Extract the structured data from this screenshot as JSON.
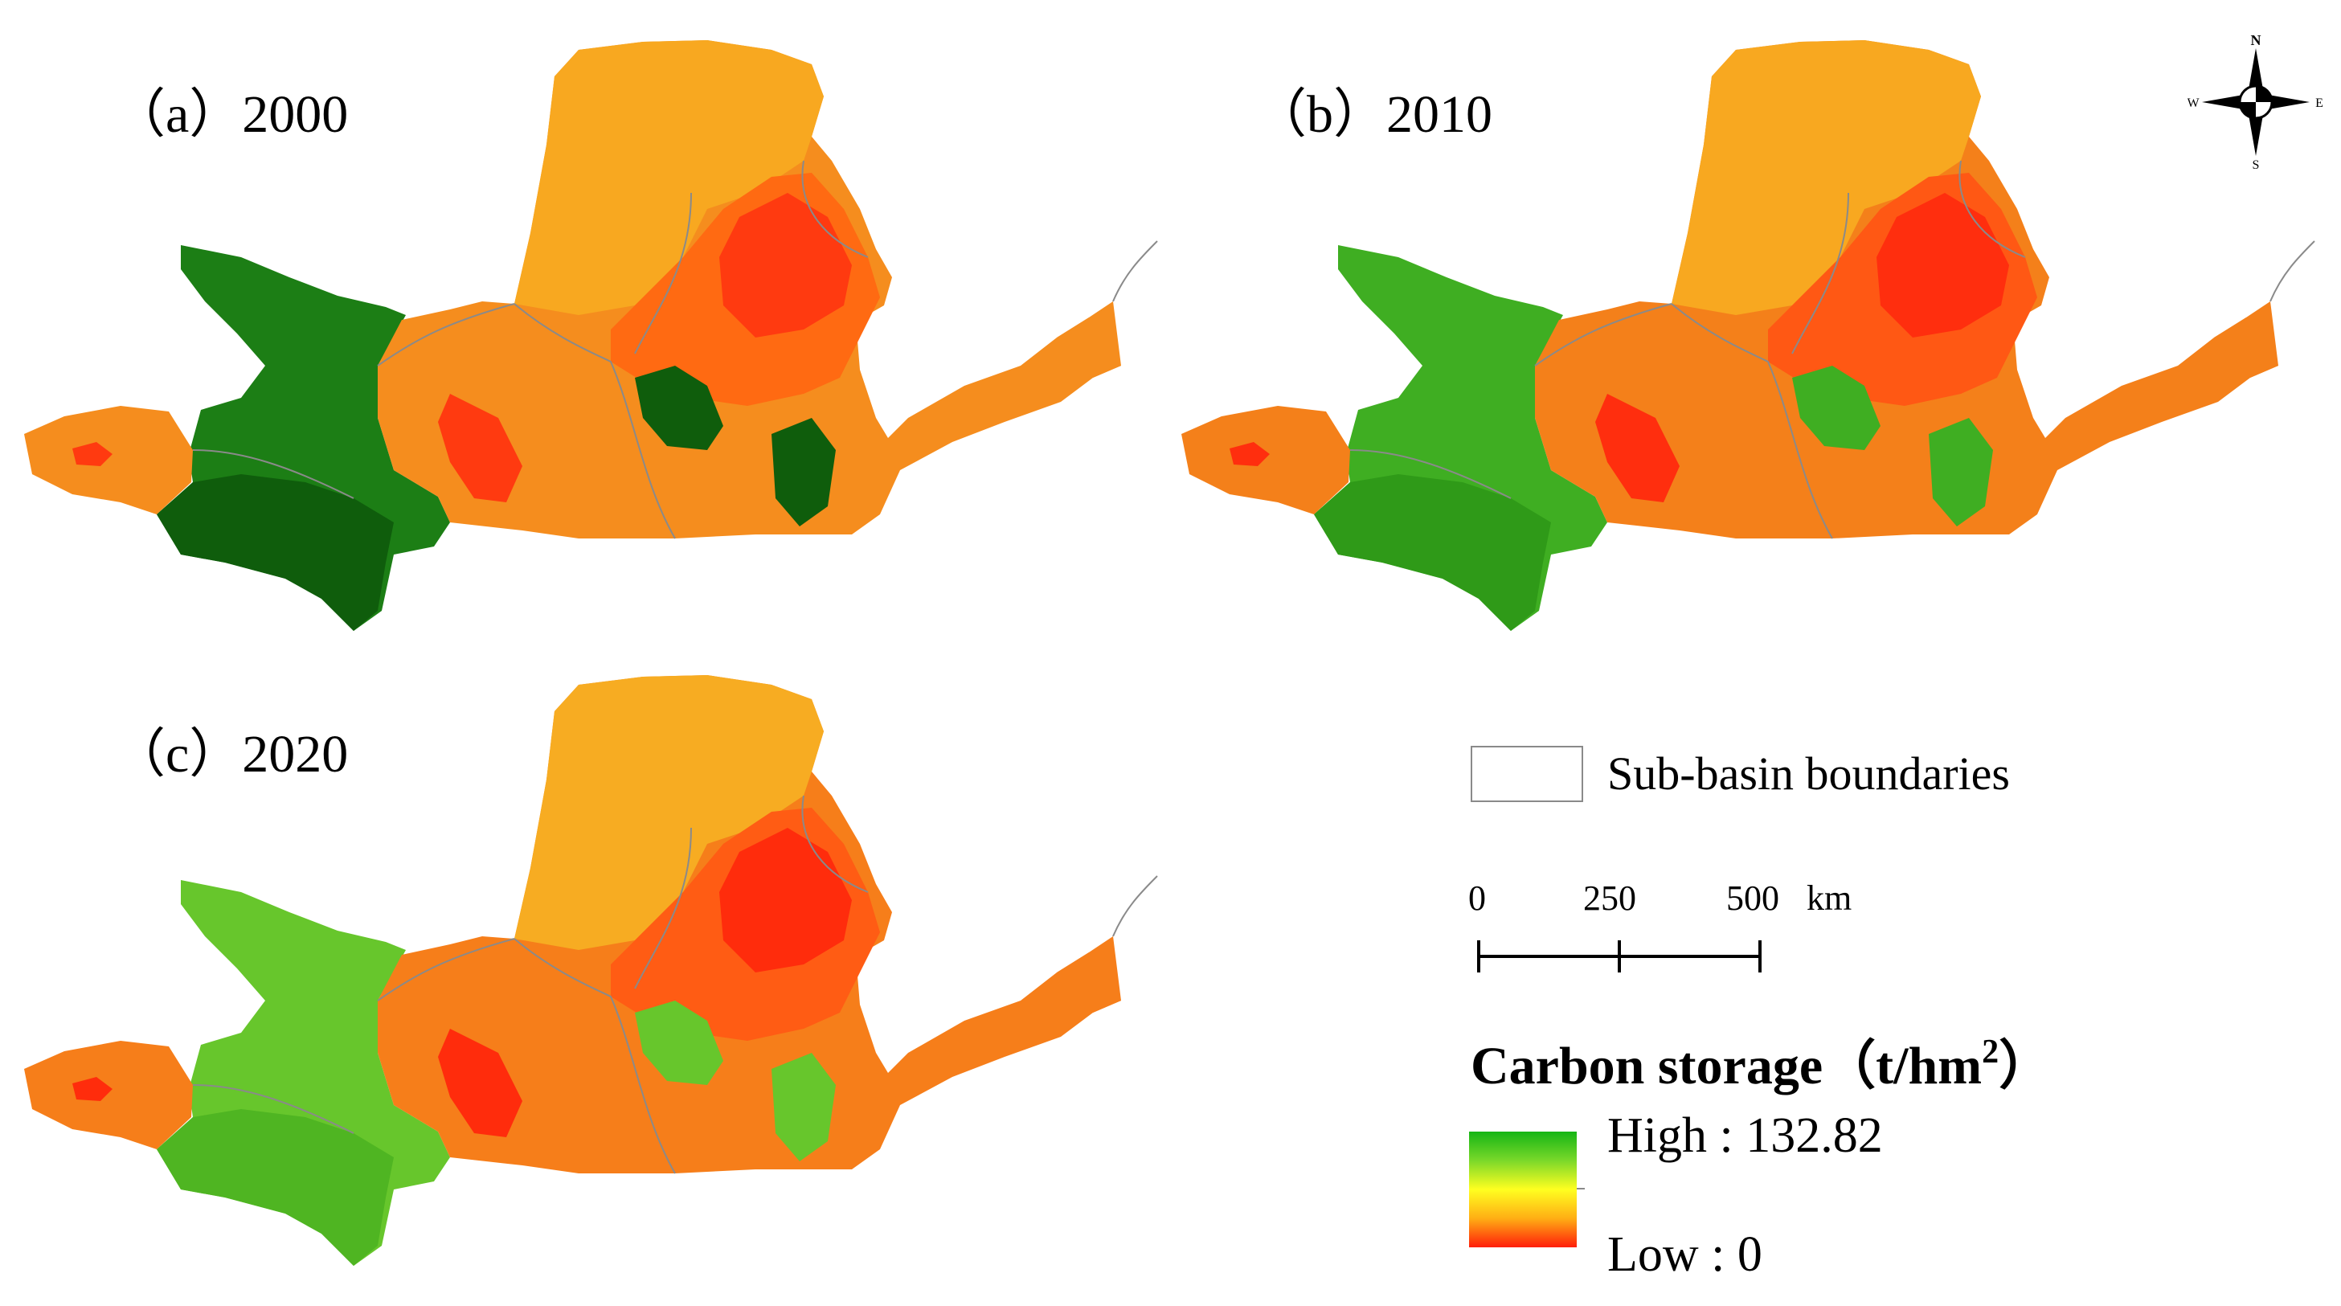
{
  "panels": [
    {
      "id": "a",
      "label": "（a）2000",
      "west_tone": "#1c7e15",
      "west_tone_dark": "#0f5d0c",
      "core_tone": "#f58d1e",
      "plateau_tone": "#ff6a12",
      "north_tone": "#f8a820",
      "hot_tone": "#ff3a10"
    },
    {
      "id": "b",
      "label": "（b）2010",
      "west_tone": "#3fae22",
      "west_tone_dark": "#2f9a18",
      "core_tone": "#f4801a",
      "plateau_tone": "#ff5814",
      "north_tone": "#f8a820",
      "hot_tone": "#ff2e0e"
    },
    {
      "id": "c",
      "label": "（c）2020",
      "west_tone": "#67c62c",
      "west_tone_dark": "#4fb522",
      "core_tone": "#f67e1a",
      "plateau_tone": "#ff5c14",
      "north_tone": "#f7ac22",
      "hot_tone": "#ff2c0c"
    }
  ],
  "compass": {
    "n": "N",
    "s": "S",
    "e": "E",
    "w": "W"
  },
  "legend": {
    "boundary_label": "Sub-basin boundaries",
    "scale": {
      "zero": "0",
      "mid": "250",
      "max": "500",
      "unit": "km"
    },
    "title_main": "Carbon storage",
    "title_unit_open": "（t/hm",
    "title_unit_sup": "2",
    "title_unit_close": "）",
    "high_label": "High : 132.82",
    "low_label": "Low : 0",
    "gradient_colors": [
      "#15b515",
      "#7ad82a",
      "#ffff20",
      "#ffae14",
      "#ff1e0a"
    ]
  }
}
